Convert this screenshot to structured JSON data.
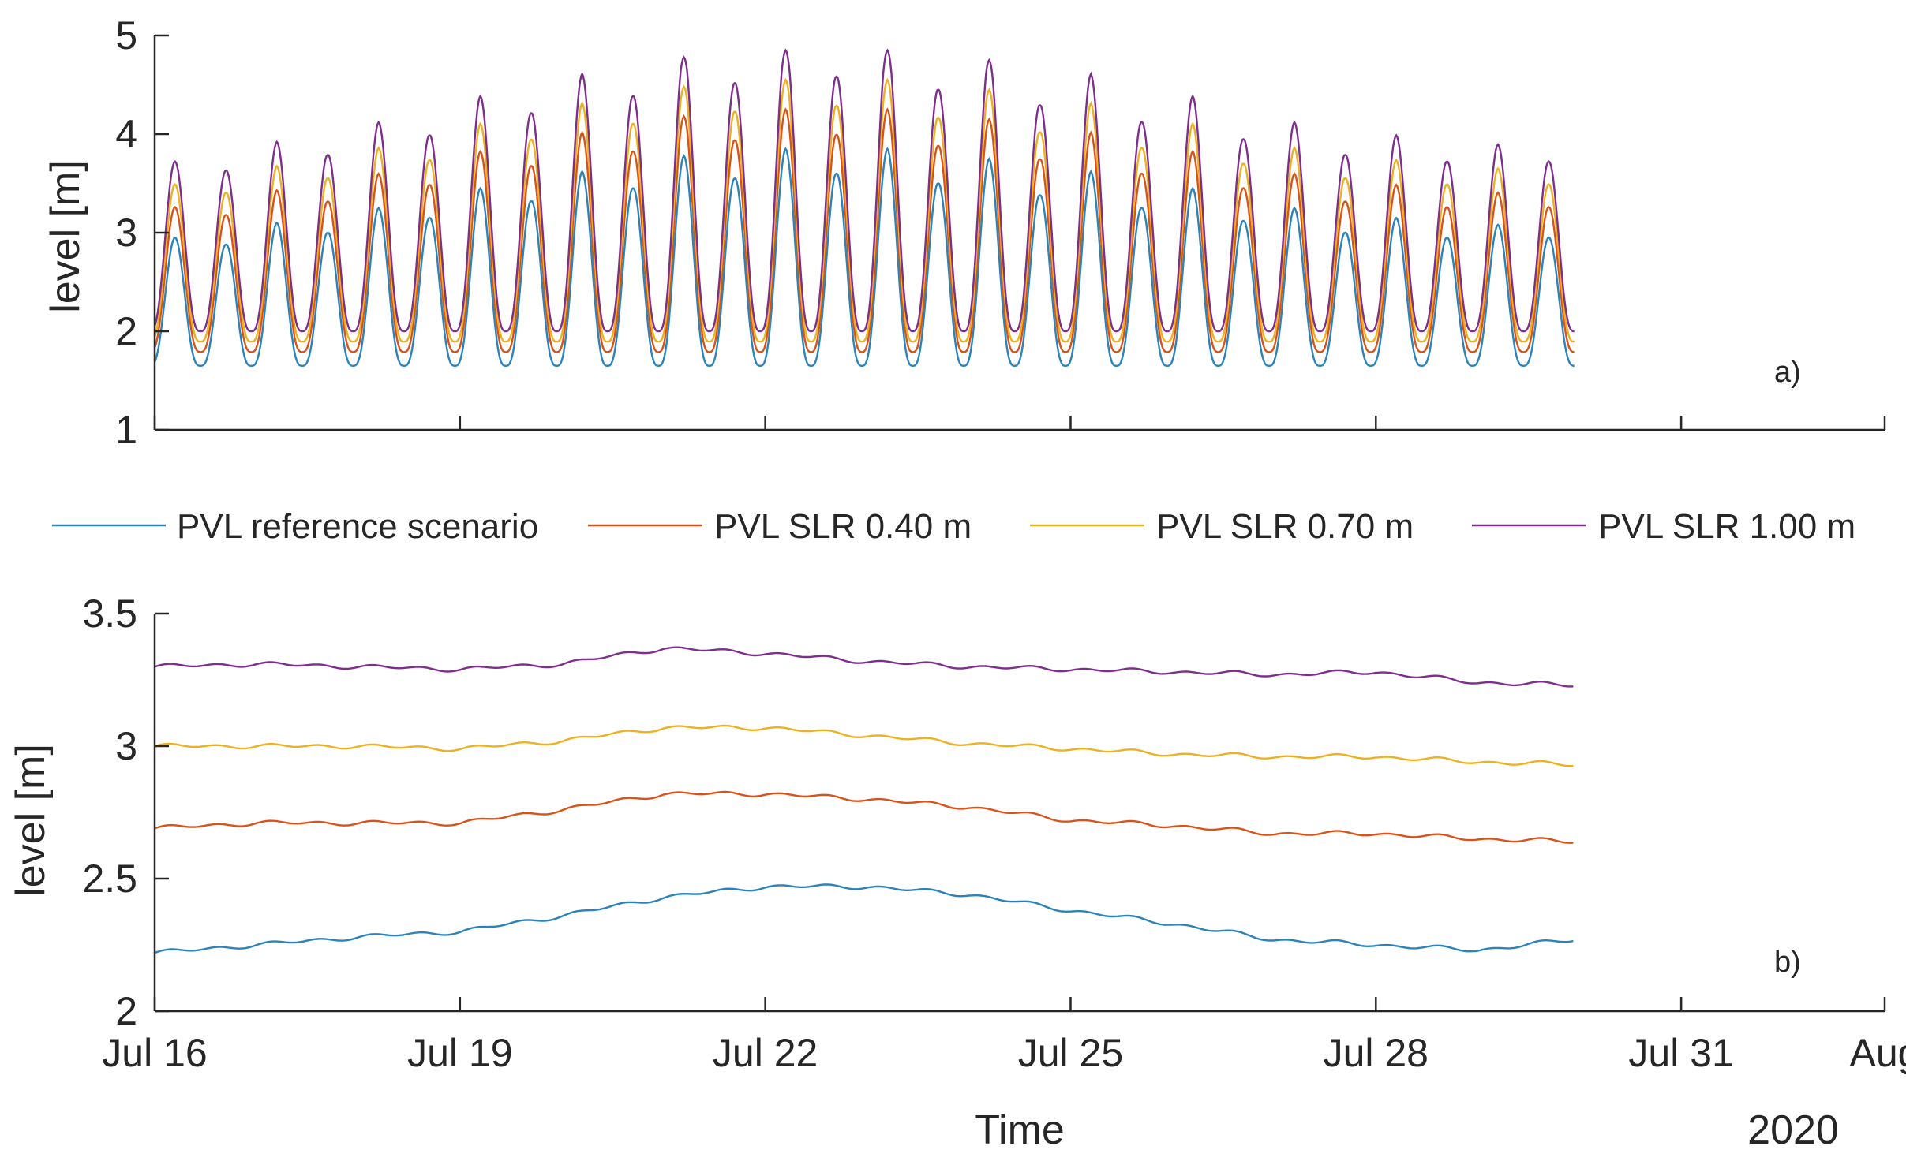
{
  "chart_data": [
    {
      "id": "a",
      "type": "line",
      "panel_label": "a)",
      "title": "",
      "xlabel": "",
      "ylabel": "level [m]",
      "ylim": [
        1,
        5
      ],
      "yticks": [
        "1",
        "2",
        "3",
        "4",
        "5"
      ],
      "xlim_days": [
        0,
        17
      ],
      "grid": false,
      "series": [
        {
          "name": "PVL reference scenario",
          "offset": 0.0,
          "color": "#2b83ba"
        },
        {
          "name": "PVL SLR 0.40 m",
          "offset": 0.4,
          "color": "#d95319"
        },
        {
          "name": "PVL SLR 0.70 m",
          "offset": 0.7,
          "color": "#edb120"
        },
        {
          "name": "PVL SLR 1.00 m",
          "offset": 1.0,
          "color": "#7e2f8e"
        }
      ],
      "tide": {
        "period_days": 0.5,
        "x_end_days": 13.95,
        "high_days": [
          0.2,
          0.7,
          1.2,
          1.7,
          2.2,
          2.7,
          3.2,
          3.7,
          4.2,
          4.7,
          5.2,
          5.7,
          6.2,
          6.7,
          7.2,
          7.7,
          8.2,
          8.7,
          9.2,
          9.7,
          10.2,
          10.7,
          11.2,
          11.7,
          12.2,
          12.7,
          13.2,
          13.7
        ],
        "high_water_reference_m": [
          2.95,
          2.88,
          3.1,
          3.0,
          3.25,
          3.15,
          3.45,
          3.32,
          3.62,
          3.45,
          3.78,
          3.55,
          3.85,
          3.6,
          3.85,
          3.5,
          3.75,
          3.38,
          3.62,
          3.25,
          3.45,
          3.12,
          3.25,
          3.0,
          3.15,
          2.95,
          3.08,
          2.95
        ],
        "low_water_reference_m": 1.65
      }
    },
    {
      "id": "b",
      "type": "line",
      "panel_label": "b)",
      "title": "",
      "xlabel": "Time",
      "ylabel": "level [m]",
      "ylim": [
        2,
        3.5
      ],
      "yticks": [
        "2",
        "2.5",
        "3",
        "3.5"
      ],
      "xlim_days": [
        0,
        17
      ],
      "xtick_days": [
        0,
        3,
        6,
        9,
        12,
        15,
        17
      ],
      "xtick_labels": [
        "Jul 16",
        "Jul 19",
        "Jul 22",
        "Jul 25",
        "Jul 28",
        "Jul 31",
        "Aug"
      ],
      "x_secondary_label": "2020",
      "grid": false,
      "x_days": [
        0,
        1,
        2,
        3,
        4,
        5,
        6,
        7,
        8,
        9,
        10,
        11,
        12,
        13,
        13.95
      ],
      "series": [
        {
          "name": "PVL reference scenario",
          "color": "#2b83ba",
          "values": [
            2.22,
            2.25,
            2.28,
            2.3,
            2.36,
            2.43,
            2.47,
            2.47,
            2.44,
            2.38,
            2.33,
            2.27,
            2.25,
            2.23,
            2.27
          ]
        },
        {
          "name": "PVL SLR 0.40 m",
          "color": "#d95319",
          "values": [
            2.69,
            2.71,
            2.71,
            2.71,
            2.76,
            2.82,
            2.82,
            2.8,
            2.77,
            2.72,
            2.7,
            2.67,
            2.67,
            2.65,
            2.64
          ]
        },
        {
          "name": "PVL SLR 0.70 m",
          "color": "#edb120",
          "values": [
            3.0,
            3.0,
            3.0,
            2.99,
            3.02,
            3.07,
            3.07,
            3.04,
            3.01,
            2.99,
            2.97,
            2.96,
            2.96,
            2.94,
            2.93
          ]
        },
        {
          "name": "PVL SLR 1.00 m",
          "color": "#7e2f8e",
          "values": [
            3.3,
            3.31,
            3.3,
            3.29,
            3.31,
            3.37,
            3.35,
            3.32,
            3.3,
            3.29,
            3.28,
            3.27,
            3.28,
            3.24,
            3.23
          ]
        }
      ]
    }
  ],
  "legend": {
    "placement": "between panels",
    "items": [
      {
        "label": "PVL reference scenario",
        "color": "#2b83ba"
      },
      {
        "label": "PVL SLR 0.40 m",
        "color": "#d95319"
      },
      {
        "label": "PVL SLR 0.70 m",
        "color": "#edb120"
      },
      {
        "label": "PVL SLR 1.00 m",
        "color": "#7e2f8e"
      }
    ]
  }
}
